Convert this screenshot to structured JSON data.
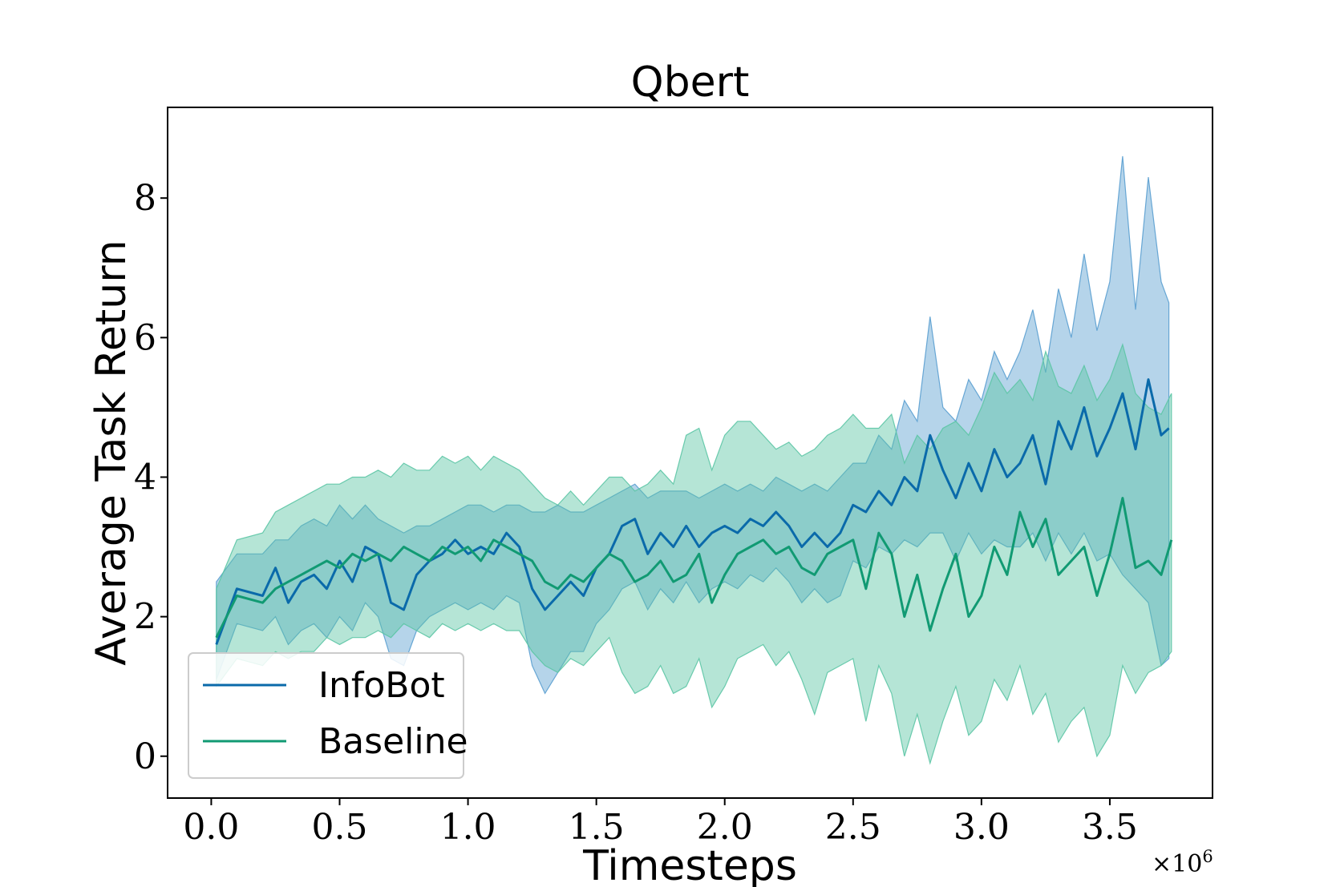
{
  "chart_data": {
    "type": "line",
    "title": "Qbert",
    "xlabel": "Timesteps",
    "ylabel": "Average Task Return",
    "x_multiplier_label": "×10",
    "x_multiplier_exponent": "6",
    "xlim": [
      -0.17,
      3.9
    ],
    "ylim": [
      -0.6,
      9.3
    ],
    "xticks": [
      0.0,
      0.5,
      1.0,
      1.5,
      2.0,
      2.5,
      3.0,
      3.5
    ],
    "xtick_labels": [
      "0.0",
      "0.5",
      "1.0",
      "1.5",
      "2.0",
      "2.5",
      "3.0",
      "3.5"
    ],
    "yticks": [
      0,
      2,
      4,
      6,
      8
    ],
    "ytick_labels": [
      "0",
      "2",
      "4",
      "6",
      "8"
    ],
    "grid": false,
    "legend_position": "bottom-left",
    "series": [
      {
        "name": "InfoBot",
        "color": "#0a6aaa",
        "fill_color": "#5a9fd0",
        "x": [
          0.02,
          0.1,
          0.2,
          0.25,
          0.3,
          0.35,
          0.4,
          0.45,
          0.5,
          0.55,
          0.6,
          0.65,
          0.7,
          0.75,
          0.8,
          0.85,
          0.9,
          0.95,
          1.0,
          1.05,
          1.1,
          1.15,
          1.2,
          1.25,
          1.3,
          1.35,
          1.4,
          1.45,
          1.5,
          1.55,
          1.6,
          1.65,
          1.7,
          1.75,
          1.8,
          1.85,
          1.9,
          1.95,
          2.0,
          2.05,
          2.1,
          2.15,
          2.2,
          2.25,
          2.3,
          2.35,
          2.4,
          2.45,
          2.5,
          2.55,
          2.6,
          2.65,
          2.7,
          2.75,
          2.8,
          2.85,
          2.9,
          2.95,
          3.0,
          3.05,
          3.1,
          3.15,
          3.2,
          3.25,
          3.3,
          3.35,
          3.4,
          3.45,
          3.5,
          3.55,
          3.6,
          3.65,
          3.7,
          3.73
        ],
        "y": [
          1.6,
          2.4,
          2.3,
          2.7,
          2.2,
          2.5,
          2.6,
          2.4,
          2.8,
          2.5,
          3.0,
          2.9,
          2.2,
          2.1,
          2.6,
          2.8,
          2.9,
          3.1,
          2.9,
          3.0,
          2.9,
          3.2,
          3.0,
          2.4,
          2.1,
          2.3,
          2.5,
          2.3,
          2.7,
          2.9,
          3.3,
          3.4,
          2.9,
          3.2,
          3.0,
          3.3,
          3.0,
          3.2,
          3.3,
          3.2,
          3.4,
          3.3,
          3.5,
          3.3,
          3.0,
          3.2,
          3.0,
          3.2,
          3.6,
          3.5,
          3.8,
          3.6,
          4.0,
          3.8,
          4.6,
          4.1,
          3.7,
          4.2,
          3.8,
          4.4,
          4.0,
          4.2,
          4.6,
          3.9,
          4.8,
          4.4,
          5.0,
          4.3,
          4.7,
          5.2,
          4.4,
          5.4,
          4.6,
          4.7
        ],
        "upper": [
          2.5,
          2.9,
          2.9,
          3.1,
          3.1,
          3.3,
          3.4,
          3.3,
          3.6,
          3.4,
          3.6,
          3.4,
          3.3,
          3.2,
          3.3,
          3.3,
          3.4,
          3.5,
          3.6,
          3.6,
          3.5,
          3.6,
          3.6,
          3.5,
          3.5,
          3.6,
          3.5,
          3.5,
          3.6,
          3.7,
          3.8,
          3.9,
          3.7,
          3.8,
          3.8,
          3.8,
          3.7,
          3.8,
          3.9,
          3.8,
          3.9,
          3.8,
          4.0,
          3.9,
          3.8,
          3.9,
          3.8,
          4.0,
          4.2,
          4.2,
          4.6,
          4.4,
          5.1,
          4.8,
          6.3,
          5.0,
          4.8,
          5.4,
          5.1,
          5.8,
          5.4,
          5.8,
          6.4,
          5.5,
          6.7,
          6.0,
          7.2,
          6.1,
          6.8,
          8.6,
          6.4,
          8.3,
          6.8,
          6.5
        ],
        "lower": [
          1.1,
          1.9,
          1.8,
          2.0,
          1.6,
          1.8,
          1.9,
          1.7,
          2.0,
          1.8,
          2.2,
          2.0,
          1.4,
          1.3,
          1.8,
          2.0,
          2.1,
          2.2,
          2.1,
          2.2,
          2.1,
          2.3,
          2.2,
          1.3,
          0.9,
          1.2,
          1.5,
          1.5,
          1.9,
          2.1,
          2.4,
          2.5,
          2.1,
          2.4,
          2.2,
          2.5,
          2.2,
          2.4,
          2.5,
          2.4,
          2.6,
          2.5,
          2.7,
          2.5,
          2.2,
          2.4,
          2.2,
          2.3,
          2.8,
          2.7,
          3.0,
          2.9,
          3.1,
          3.0,
          3.2,
          3.2,
          2.8,
          3.2,
          2.9,
          3.1,
          3.0,
          3.0,
          3.2,
          2.8,
          3.2,
          2.9,
          3.2,
          2.8,
          2.9,
          2.6,
          2.4,
          2.2,
          1.3,
          1.4
        ]
      },
      {
        "name": "Baseline",
        "color": "#119a73",
        "fill_color": "#5cc5a5",
        "x": [
          0.02,
          0.1,
          0.2,
          0.25,
          0.3,
          0.35,
          0.4,
          0.45,
          0.5,
          0.55,
          0.6,
          0.65,
          0.7,
          0.75,
          0.8,
          0.85,
          0.9,
          0.95,
          1.0,
          1.05,
          1.1,
          1.15,
          1.2,
          1.25,
          1.3,
          1.35,
          1.4,
          1.45,
          1.5,
          1.55,
          1.6,
          1.65,
          1.7,
          1.75,
          1.8,
          1.85,
          1.9,
          1.95,
          2.0,
          2.05,
          2.1,
          2.15,
          2.2,
          2.25,
          2.3,
          2.35,
          2.4,
          2.45,
          2.5,
          2.55,
          2.6,
          2.65,
          2.7,
          2.75,
          2.8,
          2.85,
          2.9,
          2.95,
          3.0,
          3.05,
          3.1,
          3.15,
          3.2,
          3.25,
          3.3,
          3.35,
          3.4,
          3.45,
          3.5,
          3.55,
          3.6,
          3.65,
          3.7,
          3.74
        ],
        "y": [
          1.7,
          2.3,
          2.2,
          2.4,
          2.5,
          2.6,
          2.7,
          2.8,
          2.7,
          2.9,
          2.8,
          2.9,
          2.8,
          3.0,
          2.9,
          2.8,
          3.0,
          2.9,
          3.0,
          2.8,
          3.1,
          3.0,
          2.9,
          2.8,
          2.5,
          2.4,
          2.6,
          2.5,
          2.7,
          2.9,
          2.8,
          2.5,
          2.6,
          2.8,
          2.5,
          2.6,
          2.9,
          2.2,
          2.6,
          2.9,
          3.0,
          3.1,
          2.9,
          3.0,
          2.7,
          2.6,
          2.9,
          3.0,
          3.1,
          2.4,
          3.2,
          2.9,
          2.0,
          2.6,
          1.8,
          2.4,
          2.9,
          2.0,
          2.3,
          3.0,
          2.6,
          3.5,
          3.0,
          3.4,
          2.6,
          2.8,
          3.0,
          2.3,
          2.9,
          3.7,
          2.7,
          2.8,
          2.6,
          3.1
        ],
        "upper": [
          2.4,
          3.1,
          3.2,
          3.5,
          3.6,
          3.7,
          3.8,
          3.9,
          3.9,
          4.0,
          4.0,
          4.1,
          4.0,
          4.2,
          4.1,
          4.1,
          4.3,
          4.2,
          4.3,
          4.1,
          4.3,
          4.2,
          4.1,
          3.9,
          3.7,
          3.6,
          3.8,
          3.6,
          3.8,
          4.0,
          4.0,
          3.8,
          3.9,
          4.1,
          3.9,
          4.6,
          4.7,
          4.1,
          4.6,
          4.8,
          4.8,
          4.6,
          4.4,
          4.5,
          4.3,
          4.4,
          4.6,
          4.7,
          4.9,
          4.7,
          4.7,
          4.9,
          4.2,
          4.6,
          4.4,
          4.7,
          4.8,
          4.6,
          5.0,
          5.5,
          5.2,
          5.4,
          5.1,
          5.8,
          5.3,
          5.2,
          5.6,
          5.1,
          5.4,
          5.9,
          5.2,
          5.0,
          4.9,
          5.2
        ],
        "lower": [
          1.0,
          1.4,
          1.3,
          1.5,
          1.4,
          1.5,
          1.5,
          1.7,
          1.6,
          1.7,
          1.7,
          1.8,
          1.7,
          1.9,
          1.8,
          1.7,
          1.9,
          1.8,
          1.9,
          1.8,
          1.9,
          1.8,
          1.8,
          1.5,
          1.3,
          1.2,
          1.4,
          1.3,
          1.5,
          1.7,
          1.2,
          0.9,
          1.0,
          1.3,
          0.9,
          1.0,
          1.4,
          0.7,
          1.0,
          1.4,
          1.5,
          1.6,
          1.3,
          1.5,
          1.1,
          0.6,
          1.2,
          1.3,
          1.4,
          0.5,
          1.3,
          0.9,
          0.0,
          0.6,
          -0.1,
          0.5,
          1.0,
          0.3,
          0.5,
          1.1,
          0.8,
          1.3,
          0.6,
          0.9,
          0.2,
          0.5,
          0.7,
          0.0,
          0.3,
          1.3,
          0.9,
          1.2,
          1.3,
          1.5
        ]
      }
    ]
  }
}
